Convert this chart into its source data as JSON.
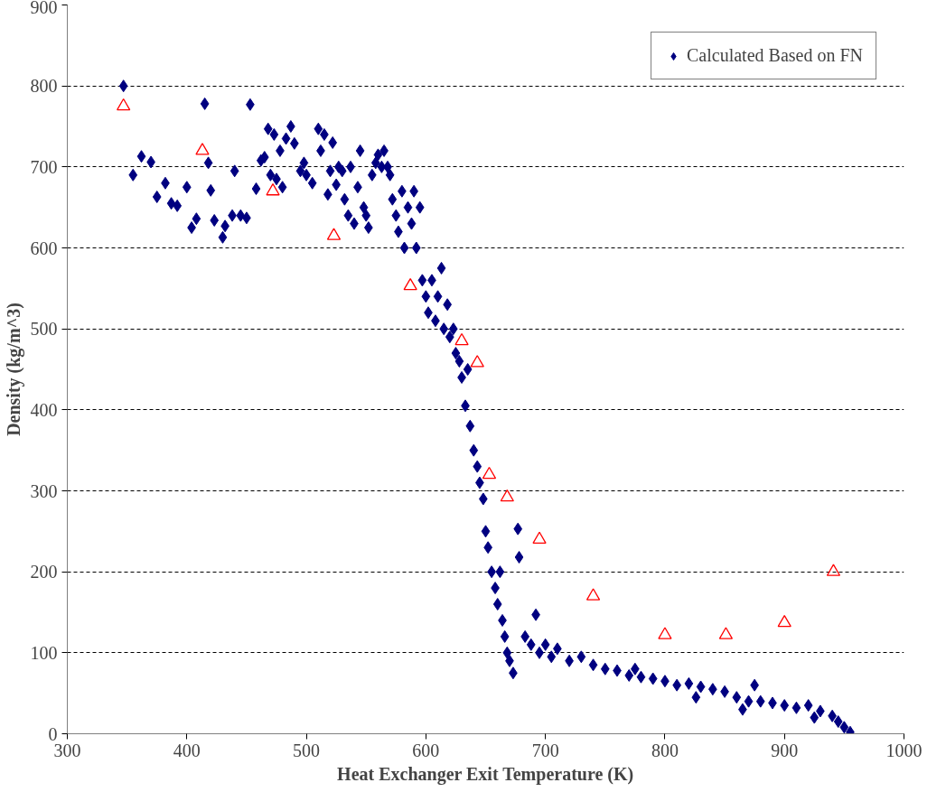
{
  "chart_data": {
    "type": "scatter",
    "xlabel": "Heat Exchanger Exit Temperature (K)",
    "ylabel": "Density (kg/m^3)",
    "xlim": [
      300,
      1000
    ],
    "xticks": [
      300,
      400,
      500,
      600,
      700,
      800,
      900,
      1000
    ],
    "ylim": [
      0,
      900
    ],
    "yticks": [
      0,
      100,
      200,
      300,
      400,
      500,
      600,
      700,
      800,
      900
    ],
    "grid": "y",
    "legend": "top right",
    "series": [
      {
        "name": "Calculated Based on FN",
        "color": "#000080",
        "marker": "diamond",
        "x": [
          347,
          355,
          362,
          370,
          375,
          382,
          387,
          392,
          400,
          404,
          408,
          415,
          418,
          420,
          423,
          430,
          432,
          438,
          440,
          445,
          450,
          453,
          458,
          462,
          465,
          468,
          470,
          473,
          475,
          478,
          480,
          483,
          487,
          490,
          495,
          498,
          500,
          505,
          510,
          512,
          515,
          518,
          520,
          522,
          525,
          527,
          530,
          532,
          535,
          537,
          540,
          543,
          545,
          548,
          550,
          552,
          555,
          558,
          560,
          563,
          565,
          568,
          570,
          572,
          575,
          577,
          580,
          582,
          585,
          588,
          590,
          592,
          595,
          597,
          600,
          602,
          605,
          608,
          610,
          613,
          615,
          618,
          620,
          623,
          625,
          628,
          630,
          633,
          635,
          637,
          640,
          643,
          645,
          648,
          650,
          652,
          655,
          658,
          660,
          662,
          664,
          666,
          668,
          670,
          673,
          677,
          678,
          683,
          688,
          692,
          695,
          700,
          705,
          710,
          720,
          730,
          740,
          750,
          760,
          770,
          775,
          780,
          790,
          800,
          810,
          820,
          826,
          830,
          840,
          850,
          860,
          865,
          870,
          875,
          880,
          890,
          900,
          910,
          920,
          925,
          930,
          940,
          945,
          950,
          955
        ],
        "values": [
          800,
          690,
          713,
          706,
          663,
          680,
          655,
          652,
          675,
          625,
          636,
          778,
          705,
          671,
          634,
          613,
          627,
          640,
          695,
          640,
          637,
          777,
          673,
          708,
          712,
          747,
          690,
          740,
          685,
          720,
          675,
          735,
          750,
          729,
          695,
          705,
          690,
          680,
          747,
          720,
          740,
          666,
          695,
          730,
          678,
          700,
          695,
          660,
          640,
          700,
          630,
          675,
          720,
          650,
          640,
          625,
          690,
          705,
          715,
          700,
          720,
          700,
          690,
          660,
          640,
          620,
          670,
          600,
          650,
          630,
          670,
          600,
          650,
          560,
          540,
          520,
          560,
          510,
          540,
          575,
          500,
          530,
          490,
          500,
          470,
          460,
          440,
          405,
          450,
          380,
          350,
          330,
          310,
          290,
          250,
          230,
          200,
          180,
          160,
          200,
          140,
          120,
          100,
          90,
          75,
          253,
          218,
          120,
          110,
          147,
          100,
          110,
          95,
          105,
          90,
          95,
          85,
          80,
          78,
          72,
          80,
          70,
          68,
          65,
          60,
          62,
          45,
          58,
          55,
          52,
          45,
          30,
          40,
          60,
          40,
          38,
          35,
          32,
          35,
          20,
          28,
          22,
          15,
          8,
          2
        ]
      },
      {
        "color": "#ff0000",
        "marker": "triangle",
        "x": [
          347,
          413,
          472,
          523,
          587,
          630,
          643,
          653,
          668,
          695,
          740,
          800,
          851,
          900,
          941
        ],
        "values": [
          775,
          720,
          670,
          615,
          553,
          485,
          458,
          320,
          292,
          240,
          170,
          122,
          122,
          137,
          200
        ]
      }
    ]
  }
}
